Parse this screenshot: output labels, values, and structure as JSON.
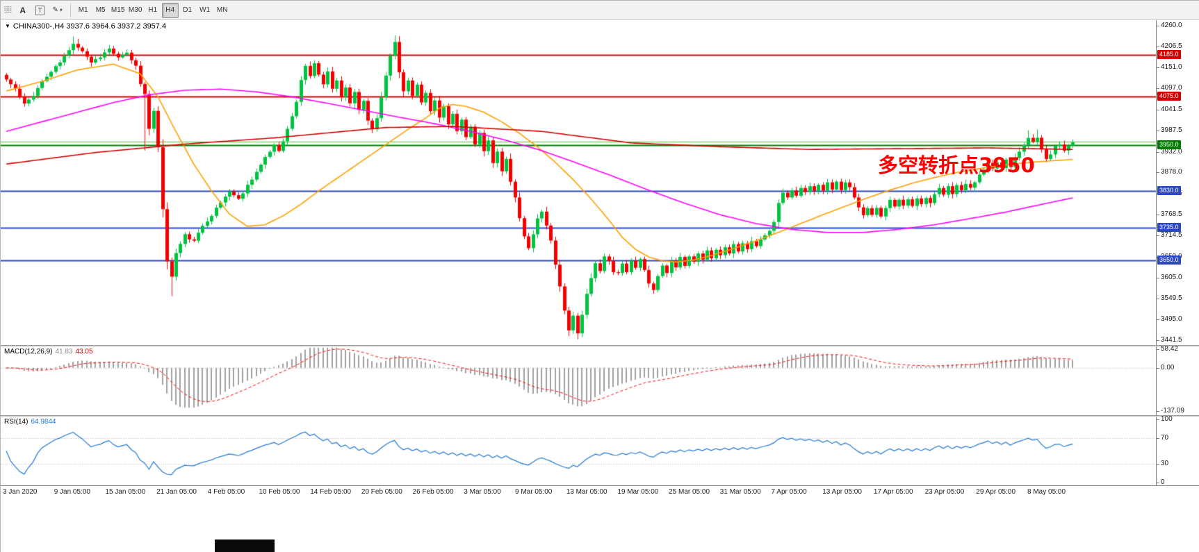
{
  "toolbar": {
    "grip_icon": "⣿⣿",
    "text_tool_label": "A",
    "text_box_tool_label": "T",
    "draw_tool_icon": "✎",
    "caret": "▾",
    "timeframes": [
      "M1",
      "M5",
      "M15",
      "M30",
      "H1",
      "H4",
      "D1",
      "W1",
      "MN"
    ],
    "active_timeframe": "H4"
  },
  "chart_header": {
    "collapse_arrow": "▼",
    "symbol_period": "CHINA300-,H4",
    "ohlc": "3937.6 3964.6 3937.2 3957.4"
  },
  "annotation": {
    "text": "多空转折点3950",
    "color": "#FF0000"
  },
  "main_chart": {
    "axis_ticks": [
      "4260.0",
      "4206.5",
      "4151.0",
      "4097.0",
      "4041.5",
      "3987.5",
      "3932.0",
      "3878.0",
      "3822.5",
      "3768.5",
      "3714.5",
      "3659.0",
      "3605.0",
      "3549.5",
      "3495.0",
      "3441.5"
    ]
  },
  "macd_panel": {
    "label": "MACD(12,26,9)",
    "value_main": "41.83",
    "value_signal": "43.05",
    "axis_ticks": [
      "58.42",
      "0.00",
      "-137.09"
    ]
  },
  "rsi_panel": {
    "label": "RSI(14)",
    "value": "64.9844",
    "axis_ticks": [
      "100",
      "70",
      "30",
      "0"
    ]
  },
  "time_axis": {
    "labels": [
      "3 Jan 2020",
      "9 Jan 05:00",
      "15 Jan 05:00",
      "21 Jan 05:00",
      "4 Feb 05:00",
      "10 Feb 05:00",
      "14 Feb 05:00",
      "20 Feb 05:00",
      "26 Feb 05:00",
      "3 Mar 05:00",
      "9 Mar 05:00",
      "13 Mar 05:00",
      "19 Mar 05:00",
      "25 Mar 05:00",
      "31 Mar 05:00",
      "7 Apr 05:00",
      "13 Apr 05:00",
      "17 Apr 05:00",
      "23 Apr 05:00",
      "29 Apr 05:00",
      "8 May 05:00"
    ]
  },
  "chart_data": {
    "type": "candlestick",
    "symbol": "CHINA300-",
    "timeframe": "H4",
    "bars": 240,
    "price_range": [
      3441.5,
      4260.0
    ],
    "last_ohlc": [
      3937.6,
      3964.6,
      3937.2,
      3957.4
    ],
    "up_color": "#00c340",
    "down_color": "#f20000",
    "seed": 11,
    "noise": 7,
    "close_keyframes": [
      [
        0,
        4120
      ],
      [
        2,
        4095
      ],
      [
        4,
        4055
      ],
      [
        6,
        4080
      ],
      [
        8,
        4115
      ],
      [
        10,
        4140
      ],
      [
        12,
        4165
      ],
      [
        14,
        4195
      ],
      [
        15,
        4215
      ],
      [
        17,
        4195
      ],
      [
        19,
        4165
      ],
      [
        21,
        4180
      ],
      [
        23,
        4200
      ],
      [
        25,
        4175
      ],
      [
        27,
        4188
      ],
      [
        29,
        4155
      ],
      [
        30,
        4110
      ],
      [
        31,
        4085
      ],
      [
        32,
        3990
      ],
      [
        33,
        4035
      ],
      [
        34,
        3945
      ],
      [
        35,
        3785
      ],
      [
        36,
        3645
      ],
      [
        37,
        3608
      ],
      [
        38,
        3668
      ],
      [
        40,
        3715
      ],
      [
        42,
        3698
      ],
      [
        44,
        3740
      ],
      [
        46,
        3768
      ],
      [
        48,
        3800
      ],
      [
        50,
        3830
      ],
      [
        52,
        3808
      ],
      [
        54,
        3845
      ],
      [
        56,
        3880
      ],
      [
        58,
        3915
      ],
      [
        60,
        3950
      ],
      [
        61,
        3935
      ],
      [
        63,
        3990
      ],
      [
        65,
        4060
      ],
      [
        66,
        4120
      ],
      [
        67,
        4155
      ],
      [
        68,
        4130
      ],
      [
        69,
        4160
      ],
      [
        70,
        4135
      ],
      [
        71,
        4110
      ],
      [
        72,
        4140
      ],
      [
        73,
        4095
      ],
      [
        74,
        4120
      ],
      [
        75,
        4075
      ],
      [
        76,
        4100
      ],
      [
        77,
        4055
      ],
      [
        78,
        4085
      ],
      [
        79,
        4040
      ],
      [
        80,
        4065
      ],
      [
        81,
        4010
      ],
      [
        82,
        3990
      ],
      [
        83,
        4020
      ],
      [
        84,
        4075
      ],
      [
        85,
        4130
      ],
      [
        86,
        4185
      ],
      [
        87,
        4215
      ],
      [
        88,
        4140
      ],
      [
        89,
        4090
      ],
      [
        90,
        4120
      ],
      [
        91,
        4080
      ],
      [
        92,
        4105
      ],
      [
        93,
        4060
      ],
      [
        94,
        4085
      ],
      [
        95,
        4040
      ],
      [
        96,
        4065
      ],
      [
        97,
        4020
      ],
      [
        98,
        4048
      ],
      [
        99,
        4000
      ],
      [
        100,
        4030
      ],
      [
        101,
        3985
      ],
      [
        102,
        4015
      ],
      [
        103,
        3970
      ],
      [
        104,
        4000
      ],
      [
        105,
        3950
      ],
      [
        106,
        3980
      ],
      [
        107,
        3930
      ],
      [
        108,
        3960
      ],
      [
        109,
        3905
      ],
      [
        110,
        3935
      ],
      [
        111,
        3880
      ],
      [
        112,
        3910
      ],
      [
        113,
        3855
      ],
      [
        114,
        3810
      ],
      [
        115,
        3760
      ],
      [
        116,
        3710
      ],
      [
        117,
        3680
      ],
      [
        118,
        3720
      ],
      [
        119,
        3760
      ],
      [
        120,
        3775
      ],
      [
        121,
        3740
      ],
      [
        122,
        3700
      ],
      [
        123,
        3640
      ],
      [
        124,
        3580
      ],
      [
        125,
        3520
      ],
      [
        126,
        3470
      ],
      [
        127,
        3505
      ],
      [
        128,
        3460
      ],
      [
        129,
        3510
      ],
      [
        130,
        3560
      ],
      [
        131,
        3600
      ],
      [
        132,
        3640
      ],
      [
        133,
        3625
      ],
      [
        134,
        3660
      ],
      [
        135,
        3645
      ],
      [
        136,
        3618
      ],
      [
        137,
        3615
      ],
      [
        138,
        3640
      ],
      [
        139,
        3622
      ],
      [
        140,
        3648
      ],
      [
        141,
        3630
      ],
      [
        142,
        3655
      ],
      [
        143,
        3622
      ],
      [
        144,
        3592
      ],
      [
        145,
        3575
      ],
      [
        146,
        3605
      ],
      [
        147,
        3635
      ],
      [
        148,
        3615
      ],
      [
        149,
        3645
      ],
      [
        150,
        3628
      ],
      [
        151,
        3655
      ],
      [
        152,
        3638
      ],
      [
        153,
        3662
      ],
      [
        154,
        3645
      ],
      [
        155,
        3668
      ],
      [
        156,
        3652
      ],
      [
        157,
        3675
      ],
      [
        158,
        3658
      ],
      [
        159,
        3680
      ],
      [
        160,
        3663
      ],
      [
        161,
        3685
      ],
      [
        162,
        3668
      ],
      [
        163,
        3690
      ],
      [
        164,
        3673
      ],
      [
        165,
        3695
      ],
      [
        166,
        3678
      ],
      [
        167,
        3700
      ],
      [
        168,
        3683
      ],
      [
        169,
        3705
      ],
      [
        170,
        3715
      ],
      [
        171,
        3728
      ],
      [
        172,
        3748
      ],
      [
        173,
        3800
      ],
      [
        174,
        3825
      ],
      [
        175,
        3812
      ],
      [
        176,
        3835
      ],
      [
        177,
        3820
      ],
      [
        178,
        3840
      ],
      [
        179,
        3825
      ],
      [
        180,
        3845
      ],
      [
        181,
        3828
      ],
      [
        182,
        3848
      ],
      [
        183,
        3830
      ],
      [
        184,
        3850
      ],
      [
        185,
        3832
      ],
      [
        186,
        3852
      ],
      [
        187,
        3835
      ],
      [
        188,
        3855
      ],
      [
        189,
        3838
      ],
      [
        190,
        3815
      ],
      [
        191,
        3790
      ],
      [
        192,
        3768
      ],
      [
        193,
        3788
      ],
      [
        194,
        3765
      ],
      [
        195,
        3785
      ],
      [
        196,
        3762
      ],
      [
        197,
        3785
      ],
      [
        198,
        3805
      ],
      [
        199,
        3788
      ],
      [
        200,
        3808
      ],
      [
        201,
        3790
      ],
      [
        202,
        3810
      ],
      [
        203,
        3793
      ],
      [
        204,
        3813
      ],
      [
        205,
        3795
      ],
      [
        206,
        3815
      ],
      [
        207,
        3798
      ],
      [
        208,
        3818
      ],
      [
        209,
        3835
      ],
      [
        210,
        3820
      ],
      [
        211,
        3840
      ],
      [
        212,
        3825
      ],
      [
        213,
        3845
      ],
      [
        214,
        3830
      ],
      [
        215,
        3850
      ],
      [
        216,
        3835
      ],
      [
        217,
        3855
      ],
      [
        218,
        3870
      ],
      [
        219,
        3885
      ],
      [
        220,
        3900
      ],
      [
        221,
        3885
      ],
      [
        222,
        3905
      ],
      [
        223,
        3890
      ],
      [
        224,
        3912
      ],
      [
        225,
        3895
      ],
      [
        226,
        3918
      ],
      [
        227,
        3935
      ],
      [
        228,
        3952
      ],
      [
        229,
        3965
      ],
      [
        230,
        3958
      ],
      [
        231,
        3968
      ],
      [
        232,
        3940
      ],
      [
        233,
        3910
      ],
      [
        234,
        3928
      ],
      [
        235,
        3945
      ],
      [
        236,
        3952
      ],
      [
        237,
        3938
      ],
      [
        238,
        3948
      ],
      [
        239,
        3957
      ]
    ],
    "wick_overrides": {
      "15": {
        "high": 4232
      },
      "16": {
        "high": 4226
      },
      "31": {
        "low": 3935
      },
      "37": {
        "low": 3556
      },
      "87": {
        "high": 4235
      },
      "126": {
        "low": 3452
      },
      "128": {
        "low": 3444
      },
      "229": {
        "high": 3988
      },
      "231": {
        "high": 3990
      }
    },
    "moving_averages": [
      {
        "name": "ma-medium-orange",
        "color": "#ffa000",
        "points": [
          [
            0,
            4090
          ],
          [
            8,
            4115
          ],
          [
            16,
            4145
          ],
          [
            24,
            4160
          ],
          [
            30,
            4135
          ],
          [
            34,
            4075
          ],
          [
            38,
            3985
          ],
          [
            42,
            3900
          ],
          [
            46,
            3830
          ],
          [
            50,
            3770
          ],
          [
            54,
            3738
          ],
          [
            58,
            3742
          ],
          [
            62,
            3765
          ],
          [
            66,
            3795
          ],
          [
            70,
            3830
          ],
          [
            75,
            3870
          ],
          [
            80,
            3910
          ],
          [
            85,
            3950
          ],
          [
            90,
            3990
          ],
          [
            94,
            4020
          ],
          [
            97,
            4045
          ],
          [
            100,
            4055
          ],
          [
            103,
            4050
          ],
          [
            107,
            4035
          ],
          [
            111,
            4010
          ],
          [
            115,
            3980
          ],
          [
            119,
            3945
          ],
          [
            123,
            3905
          ],
          [
            127,
            3860
          ],
          [
            131,
            3810
          ],
          [
            135,
            3755
          ],
          [
            138,
            3710
          ],
          [
            141,
            3678
          ],
          [
            144,
            3658
          ],
          [
            147,
            3648
          ],
          [
            150,
            3645
          ],
          [
            154,
            3650
          ],
          [
            158,
            3662
          ],
          [
            163,
            3680
          ],
          [
            168,
            3700
          ],
          [
            173,
            3722
          ],
          [
            178,
            3745
          ],
          [
            183,
            3768
          ],
          [
            188,
            3790
          ],
          [
            193,
            3812
          ],
          [
            198,
            3832
          ],
          [
            203,
            3850
          ],
          [
            208,
            3865
          ],
          [
            213,
            3878
          ],
          [
            218,
            3888
          ],
          [
            224,
            3898
          ],
          [
            230,
            3905
          ],
          [
            239,
            3912
          ]
        ]
      },
      {
        "name": "ma-long-magenta",
        "color": "#ff00ff",
        "points": [
          [
            0,
            3985
          ],
          [
            8,
            4010
          ],
          [
            16,
            4035
          ],
          [
            24,
            4060
          ],
          [
            32,
            4080
          ],
          [
            40,
            4092
          ],
          [
            48,
            4095
          ],
          [
            56,
            4088
          ],
          [
            64,
            4075
          ],
          [
            72,
            4058
          ],
          [
            80,
            4040
          ],
          [
            88,
            4022
          ],
          [
            96,
            4005
          ],
          [
            104,
            3985
          ],
          [
            112,
            3962
          ],
          [
            120,
            3935
          ],
          [
            128,
            3902
          ],
          [
            136,
            3868
          ],
          [
            144,
            3832
          ],
          [
            152,
            3798
          ],
          [
            160,
            3768
          ],
          [
            168,
            3745
          ],
          [
            176,
            3730
          ],
          [
            184,
            3722
          ],
          [
            192,
            3722
          ],
          [
            200,
            3730
          ],
          [
            208,
            3742
          ],
          [
            216,
            3758
          ],
          [
            224,
            3775
          ],
          [
            232,
            3795
          ],
          [
            239,
            3812
          ]
        ]
      },
      {
        "name": "ma-slow-red",
        "color": "#d40000",
        "points": [
          [
            0,
            3900
          ],
          [
            20,
            3930
          ],
          [
            40,
            3952
          ],
          [
            60,
            3968
          ],
          [
            85,
            3995
          ],
          [
            100,
            3998
          ],
          [
            120,
            3985
          ],
          [
            140,
            3955
          ],
          [
            160,
            3945
          ],
          [
            180,
            3938
          ],
          [
            200,
            3940
          ],
          [
            220,
            3942
          ],
          [
            239,
            3938
          ]
        ]
      }
    ],
    "levels": [
      {
        "price": 4185.0,
        "color": "#d40000",
        "label": "4185.0",
        "width": 2
      },
      {
        "price": 4075.0,
        "color": "#d40000",
        "label": "4075.0",
        "width": 2
      },
      {
        "price": 3957.4,
        "color": "#4caf2e",
        "label": null,
        "width": 1
      },
      {
        "price": 3950.0,
        "color": "#007d00",
        "label": "3950.0",
        "width": 2
      },
      {
        "price": 3830.0,
        "color": "#2b47c4",
        "label": "3830.0",
        "width": 2
      },
      {
        "price": 3735.0,
        "color": "#2b47c4",
        "label": "3735.0",
        "width": 2
      },
      {
        "price": 3650.0,
        "color": "#2b47c4",
        "label": "3650.0",
        "width": 2
      }
    ],
    "macd": {
      "fast": 12,
      "slow": 26,
      "signal": 9,
      "value_range": [
        -151,
        68
      ],
      "bar_color": "#a0a0a0",
      "signal_color": "#ff0000"
    },
    "rsi": {
      "period": 14,
      "levels": [
        70,
        30
      ],
      "value_range": [
        0,
        100
      ],
      "line_color": "#1f77d0"
    }
  }
}
